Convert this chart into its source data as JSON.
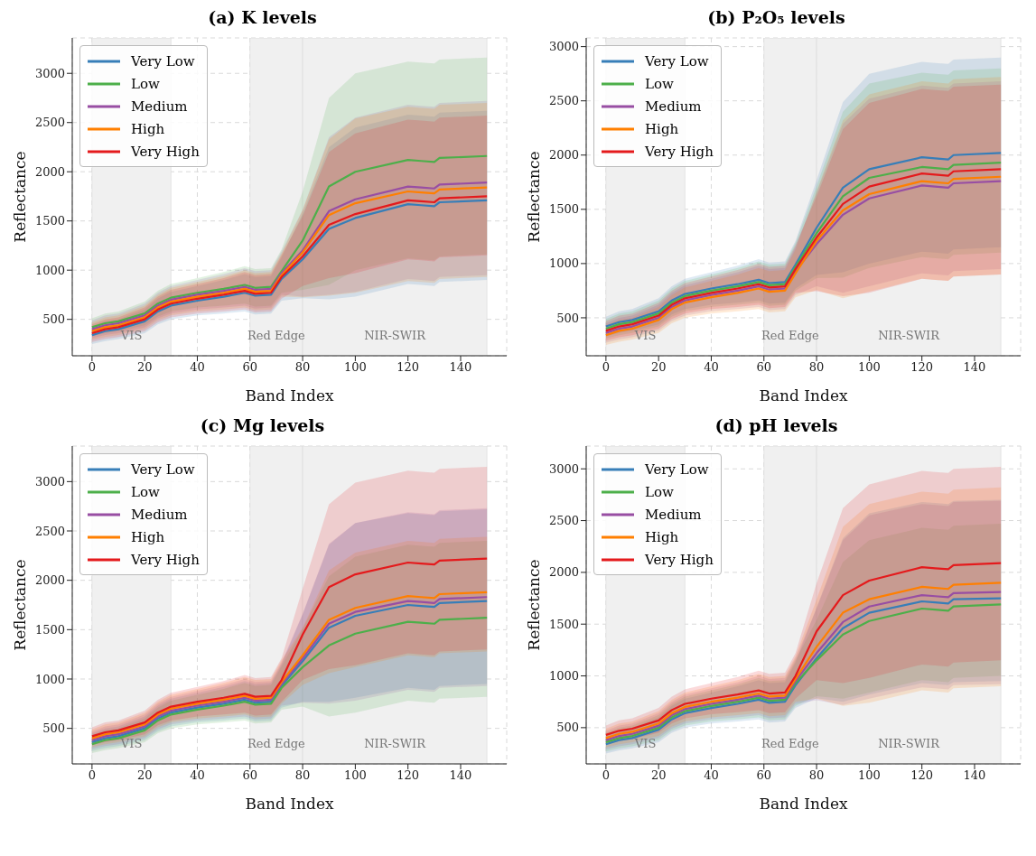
{
  "chart_data": [
    {
      "type": "line",
      "title": "(a) K levels",
      "xlabel": "Band Index",
      "ylabel": "Reflectance",
      "xlim": [
        -7.5,
        157.5
      ],
      "xticks": [
        0,
        20,
        40,
        60,
        80,
        100,
        120,
        140
      ],
      "ylim": [
        130,
        3360
      ],
      "yticks": [
        500,
        1000,
        1500,
        2000,
        2500,
        3000
      ],
      "grid": true,
      "legend": "top left",
      "marker": "none",
      "line_style": "solid",
      "x": [
        0,
        5,
        10,
        20,
        25,
        30,
        40,
        50,
        58,
        62,
        68,
        72,
        80,
        90,
        100,
        120,
        125,
        130,
        132,
        150
      ],
      "bands": [
        {
          "axis": "x",
          "from": 0,
          "to": 30,
          "label": "VIS",
          "color": "#f0f0f0"
        },
        {
          "axis": "x",
          "from": 60,
          "to": 80,
          "label": "Red Edge",
          "color": "#f0f0f0"
        },
        {
          "axis": "x",
          "from": 80,
          "to": 150,
          "label": "NIR-SWIR",
          "color": "#f0f0f0"
        }
      ],
      "series": [
        {
          "name": "Very Low",
          "color": "#377eb8",
          "values": [
            340,
            380,
            400,
            480,
            580,
            640,
            690,
            730,
            770,
            740,
            750,
            910,
            1110,
            1420,
            1530,
            1670,
            1660,
            1650,
            1690,
            1710
          ],
          "lower": [
            250,
            280,
            300,
            360,
            450,
            500,
            540,
            560,
            580,
            550,
            560,
            690,
            715,
            703,
            730,
            860,
            850,
            840,
            880,
            900
          ],
          "upper": [
            430,
            480,
            500,
            600,
            710,
            780,
            840,
            900,
            960,
            930,
            940,
            1130,
            1575,
            2250,
            2450,
            2580,
            2570,
            2560,
            2600,
            2620
          ]
        },
        {
          "name": "Low",
          "color": "#4daf4a",
          "values": [
            420,
            460,
            480,
            560,
            660,
            720,
            770,
            810,
            850,
            820,
            830,
            990,
            1300,
            1850,
            2000,
            2120,
            2110,
            2100,
            2140,
            2160
          ],
          "lower": [
            330,
            360,
            380,
            440,
            530,
            580,
            620,
            640,
            660,
            630,
            640,
            770,
            800,
            850,
            1000,
            1120,
            1110,
            1100,
            1140,
            1160
          ],
          "upper": [
            510,
            560,
            580,
            680,
            790,
            860,
            920,
            980,
            1040,
            1010,
            1020,
            1210,
            1800,
            2750,
            3000,
            3120,
            3110,
            3100,
            3140,
            3160
          ]
        },
        {
          "name": "Medium",
          "color": "#984ea3",
          "values": [
            400,
            440,
            460,
            540,
            640,
            700,
            750,
            790,
            830,
            800,
            810,
            970,
            1200,
            1600,
            1720,
            1850,
            1840,
            1830,
            1870,
            1890
          ],
          "lower": [
            310,
            340,
            360,
            420,
            510,
            560,
            600,
            620,
            640,
            610,
            620,
            750,
            730,
            750,
            780,
            910,
            900,
            890,
            930,
            950
          ],
          "upper": [
            490,
            540,
            560,
            660,
            770,
            840,
            900,
            960,
            1020,
            990,
            1000,
            1190,
            1615,
            2350,
            2550,
            2680,
            2670,
            2660,
            2700,
            2720
          ]
        },
        {
          "name": "High",
          "color": "#ff7f00",
          "values": [
            380,
            420,
            440,
            520,
            620,
            680,
            730,
            770,
            810,
            780,
            790,
            950,
            1180,
            1560,
            1680,
            1800,
            1790,
            1780,
            1820,
            1840
          ],
          "lower": [
            290,
            320,
            340,
            400,
            490,
            540,
            580,
            600,
            620,
            590,
            600,
            730,
            725,
            740,
            770,
            890,
            880,
            870,
            910,
            930
          ],
          "upper": [
            470,
            520,
            540,
            640,
            750,
            820,
            880,
            940,
            1000,
            970,
            980,
            1170,
            1610,
            2330,
            2540,
            2660,
            2650,
            2640,
            2680,
            2700
          ]
        },
        {
          "name": "Very High",
          "color": "#e41a1c",
          "values": [
            360,
            400,
            420,
            500,
            600,
            660,
            710,
            750,
            790,
            760,
            770,
            930,
            1140,
            1460,
            1570,
            1710,
            1700,
            1690,
            1730,
            1750
          ],
          "lower": [
            270,
            300,
            320,
            380,
            470,
            520,
            560,
            580,
            600,
            570,
            580,
            710,
            840,
            920,
            970,
            1110,
            1100,
            1090,
            1130,
            1150
          ],
          "upper": [
            450,
            500,
            520,
            620,
            730,
            800,
            860,
            920,
            980,
            950,
            960,
            1150,
            1550,
            2200,
            2390,
            2530,
            2520,
            2510,
            2550,
            2570
          ]
        }
      ]
    },
    {
      "type": "line",
      "title": "(b) P₂O₅ levels",
      "xlabel": "Band Index",
      "ylabel": "Reflectance",
      "xlim": [
        -7.5,
        157.5
      ],
      "xticks": [
        0,
        20,
        40,
        60,
        80,
        100,
        120,
        140
      ],
      "ylim": [
        150,
        3080
      ],
      "yticks": [
        500,
        1000,
        1500,
        2000,
        2500,
        3000
      ],
      "grid": true,
      "legend": "top left",
      "marker": "none",
      "line_style": "solid",
      "x": [
        0,
        5,
        10,
        20,
        25,
        30,
        40,
        50,
        58,
        62,
        68,
        72,
        80,
        90,
        100,
        120,
        125,
        130,
        132,
        150
      ],
      "bands": [
        {
          "axis": "x",
          "from": 0,
          "to": 30,
          "label": "VIS",
          "color": "#f0f0f0"
        },
        {
          "axis": "x",
          "from": 60,
          "to": 80,
          "label": "Red Edge",
          "color": "#f0f0f0"
        },
        {
          "axis": "x",
          "from": 80,
          "to": 150,
          "label": "NIR-SWIR",
          "color": "#f0f0f0"
        }
      ],
      "series": [
        {
          "name": "Very Low",
          "color": "#377eb8",
          "values": [
            420,
            460,
            480,
            560,
            660,
            720,
            770,
            810,
            850,
            820,
            830,
            990,
            1330,
            1700,
            1870,
            1980,
            1970,
            1960,
            2000,
            2020
          ],
          "lower": [
            330,
            360,
            380,
            440,
            530,
            580,
            620,
            640,
            660,
            630,
            640,
            770,
            895,
            920,
            1000,
            1110,
            1100,
            1090,
            1130,
            1150
          ],
          "upper": [
            510,
            560,
            580,
            680,
            790,
            860,
            920,
            980,
            1040,
            1010,
            1020,
            1210,
            1770,
            2490,
            2750,
            2860,
            2850,
            2840,
            2880,
            2900
          ]
        },
        {
          "name": "Low",
          "color": "#4daf4a",
          "values": [
            400,
            440,
            460,
            540,
            640,
            700,
            750,
            790,
            830,
            800,
            810,
            970,
            1280,
            1620,
            1790,
            1890,
            1880,
            1870,
            1910,
            1930
          ],
          "lower": [
            310,
            340,
            360,
            420,
            510,
            560,
            600,
            620,
            640,
            610,
            620,
            750,
            865,
            870,
            960,
            1060,
            1050,
            1040,
            1080,
            1100
          ],
          "upper": [
            490,
            540,
            560,
            660,
            770,
            840,
            900,
            960,
            1020,
            990,
            1000,
            1190,
            1715,
            2400,
            2660,
            2760,
            2750,
            2740,
            2780,
            2800
          ]
        },
        {
          "name": "Medium",
          "color": "#984ea3",
          "values": [
            360,
            400,
            420,
            500,
            600,
            660,
            710,
            750,
            790,
            760,
            770,
            930,
            1180,
            1450,
            1600,
            1720,
            1710,
            1700,
            1740,
            1760
          ],
          "lower": [
            270,
            300,
            320,
            380,
            470,
            520,
            560,
            580,
            600,
            570,
            580,
            710,
            790,
            730,
            790,
            910,
            900,
            890,
            930,
            950
          ],
          "upper": [
            450,
            500,
            520,
            620,
            730,
            800,
            860,
            920,
            980,
            950,
            960,
            1150,
            1655,
            2290,
            2520,
            2640,
            2630,
            2620,
            2660,
            2680
          ]
        },
        {
          "name": "High",
          "color": "#ff7f00",
          "values": [
            340,
            380,
            400,
            480,
            580,
            640,
            690,
            730,
            770,
            740,
            750,
            910,
            1210,
            1490,
            1640,
            1760,
            1750,
            1740,
            1780,
            1800
          ],
          "lower": [
            250,
            280,
            300,
            360,
            450,
            500,
            540,
            560,
            580,
            550,
            560,
            690,
            755,
            680,
            740,
            860,
            850,
            840,
            880,
            900
          ],
          "upper": [
            430,
            480,
            500,
            600,
            710,
            780,
            840,
            900,
            960,
            930,
            940,
            1130,
            1665,
            2320,
            2560,
            2680,
            2670,
            2660,
            2700,
            2720
          ]
        },
        {
          "name": "Very High",
          "color": "#e41a1c",
          "values": [
            380,
            420,
            440,
            520,
            620,
            680,
            730,
            770,
            810,
            780,
            790,
            950,
            1240,
            1550,
            1710,
            1830,
            1820,
            1810,
            1850,
            1870
          ],
          "lower": [
            290,
            320,
            340,
            400,
            490,
            540,
            580,
            600,
            620,
            590,
            600,
            730,
            745,
            700,
            730,
            860,
            850,
            840,
            880,
            900
          ],
          "upper": [
            470,
            520,
            540,
            640,
            750,
            820,
            880,
            940,
            1000,
            970,
            980,
            1170,
            1620,
            2240,
            2480,
            2610,
            2600,
            2590,
            2630,
            2650
          ]
        }
      ]
    },
    {
      "type": "line",
      "title": "(c) Mg levels",
      "xlabel": "Band Index",
      "ylabel": "Reflectance",
      "xlim": [
        -7.5,
        157.5
      ],
      "xticks": [
        0,
        20,
        40,
        60,
        80,
        100,
        120,
        140
      ],
      "ylim": [
        140,
        3360
      ],
      "yticks": [
        500,
        1000,
        1500,
        2000,
        2500,
        3000
      ],
      "grid": true,
      "legend": "top left",
      "marker": "none",
      "line_style": "solid",
      "x": [
        0,
        5,
        10,
        20,
        25,
        30,
        40,
        50,
        58,
        62,
        68,
        72,
        80,
        90,
        100,
        120,
        125,
        130,
        132,
        150
      ],
      "bands": [
        {
          "axis": "x",
          "from": 0,
          "to": 30,
          "label": "VIS",
          "color": "#f0f0f0"
        },
        {
          "axis": "x",
          "from": 60,
          "to": 80,
          "label": "Red Edge",
          "color": "#f0f0f0"
        },
        {
          "axis": "x",
          "from": 80,
          "to": 150,
          "label": "NIR-SWIR",
          "color": "#f0f0f0"
        }
      ],
      "series": [
        {
          "name": "Very Low",
          "color": "#377eb8",
          "values": [
            360,
            400,
            420,
            500,
            600,
            660,
            710,
            750,
            790,
            760,
            770,
            930,
            1180,
            1520,
            1640,
            1750,
            1740,
            1730,
            1770,
            1790
          ],
          "lower": [
            270,
            300,
            320,
            380,
            470,
            520,
            560,
            580,
            600,
            570,
            580,
            710,
            770,
            770,
            810,
            910,
            900,
            890,
            930,
            950
          ],
          "upper": [
            450,
            500,
            520,
            620,
            730,
            800,
            860,
            920,
            980,
            950,
            960,
            1150,
            1655,
            2360,
            2580,
            2680,
            2670,
            2660,
            2700,
            2720
          ]
        },
        {
          "name": "Low",
          "color": "#4daf4a",
          "values": [
            340,
            380,
            400,
            480,
            580,
            640,
            690,
            730,
            770,
            740,
            750,
            910,
            1120,
            1340,
            1460,
            1580,
            1570,
            1560,
            1600,
            1620
          ],
          "lower": [
            250,
            280,
            300,
            360,
            450,
            500,
            540,
            560,
            580,
            550,
            560,
            690,
            720,
            620,
            660,
            780,
            770,
            760,
            800,
            820
          ],
          "upper": [
            430,
            480,
            500,
            600,
            710,
            780,
            840,
            900,
            960,
            930,
            940,
            1130,
            1510,
            2040,
            2240,
            2360,
            2350,
            2340,
            2380,
            2400
          ]
        },
        {
          "name": "Medium",
          "color": "#984ea3",
          "values": [
            380,
            420,
            440,
            520,
            620,
            680,
            730,
            770,
            810,
            780,
            790,
            950,
            1210,
            1560,
            1680,
            1790,
            1780,
            1770,
            1810,
            1830
          ],
          "lower": [
            290,
            320,
            340,
            400,
            490,
            540,
            580,
            600,
            620,
            590,
            600,
            730,
            760,
            750,
            780,
            890,
            880,
            870,
            910,
            930
          ],
          "upper": [
            470,
            520,
            540,
            640,
            750,
            820,
            880,
            940,
            1000,
            970,
            980,
            1170,
            1660,
            2370,
            2580,
            2690,
            2680,
            2670,
            2710,
            2730
          ]
        },
        {
          "name": "High",
          "color": "#ff7f00",
          "values": [
            400,
            440,
            460,
            540,
            640,
            700,
            750,
            790,
            830,
            800,
            810,
            970,
            1240,
            1600,
            1720,
            1840,
            1830,
            1820,
            1860,
            1880
          ],
          "lower": [
            310,
            340,
            360,
            420,
            510,
            560,
            600,
            620,
            640,
            610,
            620,
            750,
            940,
            1060,
            1120,
            1240,
            1230,
            1220,
            1260,
            1280
          ],
          "upper": [
            490,
            540,
            560,
            660,
            770,
            840,
            900,
            960,
            1020,
            990,
            1000,
            1190,
            1520,
            2100,
            2280,
            2400,
            2390,
            2380,
            2420,
            2440
          ]
        },
        {
          "name": "Very High",
          "color": "#e41a1c",
          "values": [
            420,
            460,
            480,
            560,
            660,
            720,
            770,
            810,
            850,
            820,
            830,
            990,
            1450,
            1930,
            2060,
            2180,
            2170,
            2160,
            2200,
            2220
          ],
          "lower": [
            330,
            360,
            380,
            440,
            530,
            580,
            620,
            640,
            660,
            630,
            640,
            770,
            990,
            1100,
            1140,
            1260,
            1250,
            1240,
            1280,
            1300
          ],
          "upper": [
            510,
            560,
            580,
            680,
            790,
            860,
            920,
            980,
            1040,
            1010,
            1020,
            1210,
            1915,
            2770,
            2990,
            3110,
            3100,
            3090,
            3130,
            3150
          ]
        }
      ]
    },
    {
      "type": "line",
      "title": "(d) pH levels",
      "xlabel": "Band Index",
      "ylabel": "Reflectance",
      "xlim": [
        -7.5,
        157.5
      ],
      "xticks": [
        0,
        20,
        40,
        60,
        80,
        100,
        120,
        140
      ],
      "ylim": [
        150,
        3220
      ],
      "yticks": [
        500,
        1000,
        1500,
        2000,
        2500,
        3000
      ],
      "grid": true,
      "legend": "top left",
      "marker": "none",
      "line_style": "solid",
      "x": [
        0,
        5,
        10,
        20,
        25,
        30,
        40,
        50,
        58,
        62,
        68,
        72,
        80,
        90,
        100,
        120,
        125,
        130,
        132,
        150
      ],
      "bands": [
        {
          "axis": "x",
          "from": 0,
          "to": 30,
          "label": "VIS",
          "color": "#f0f0f0"
        },
        {
          "axis": "x",
          "from": 60,
          "to": 80,
          "label": "Red Edge",
          "color": "#f0f0f0"
        },
        {
          "axis": "x",
          "from": 80,
          "to": 150,
          "label": "NIR-SWIR",
          "color": "#f0f0f0"
        }
      ],
      "series": [
        {
          "name": "Very Low",
          "color": "#377eb8",
          "values": [
            340,
            380,
            400,
            480,
            580,
            640,
            690,
            730,
            770,
            740,
            750,
            910,
            1170,
            1460,
            1610,
            1720,
            1710,
            1700,
            1740,
            1750
          ],
          "lower": [
            250,
            280,
            300,
            360,
            450,
            500,
            540,
            560,
            580,
            550,
            560,
            690,
            785,
            750,
            820,
            930,
            920,
            910,
            940,
            950
          ],
          "upper": [
            430,
            480,
            500,
            600,
            710,
            780,
            840,
            900,
            960,
            930,
            940,
            1130,
            1660,
            2330,
            2570,
            2680,
            2670,
            2660,
            2690,
            2700
          ]
        },
        {
          "name": "Low",
          "color": "#4daf4a",
          "values": [
            360,
            400,
            420,
            500,
            600,
            660,
            710,
            750,
            790,
            760,
            770,
            930,
            1150,
            1400,
            1530,
            1650,
            1640,
            1630,
            1670,
            1690
          ],
          "lower": [
            270,
            300,
            320,
            380,
            470,
            520,
            560,
            580,
            600,
            570,
            580,
            710,
            805,
            780,
            840,
            960,
            950,
            940,
            980,
            1000
          ],
          "upper": [
            450,
            500,
            520,
            620,
            730,
            800,
            860,
            920,
            980,
            950,
            960,
            1150,
            1540,
            2100,
            2310,
            2430,
            2420,
            2410,
            2450,
            2470
          ]
        },
        {
          "name": "Medium",
          "color": "#984ea3",
          "values": [
            380,
            420,
            440,
            520,
            620,
            680,
            730,
            770,
            810,
            780,
            790,
            950,
            1220,
            1520,
            1670,
            1780,
            1770,
            1760,
            1800,
            1810
          ],
          "lower": [
            290,
            320,
            340,
            400,
            490,
            540,
            580,
            600,
            620,
            590,
            600,
            730,
            765,
            720,
            780,
            890,
            880,
            870,
            910,
            920
          ],
          "upper": [
            470,
            520,
            540,
            640,
            750,
            820,
            880,
            940,
            1000,
            970,
            980,
            1170,
            1650,
            2310,
            2550,
            2660,
            2650,
            2640,
            2680,
            2690
          ]
        },
        {
          "name": "High",
          "color": "#ff7f00",
          "values": [
            400,
            440,
            460,
            540,
            640,
            700,
            750,
            790,
            830,
            800,
            810,
            970,
            1280,
            1610,
            1740,
            1860,
            1850,
            1840,
            1880,
            1900
          ],
          "lower": [
            310,
            340,
            360,
            420,
            510,
            560,
            600,
            620,
            640,
            610,
            620,
            750,
            780,
            710,
            740,
            860,
            850,
            840,
            880,
            900
          ],
          "upper": [
            490,
            540,
            560,
            660,
            770,
            840,
            900,
            960,
            1020,
            990,
            1000,
            1190,
            1740,
            2440,
            2660,
            2780,
            2770,
            2760,
            2800,
            2820
          ]
        },
        {
          "name": "Very High",
          "color": "#e41a1c",
          "values": [
            430,
            470,
            490,
            570,
            670,
            730,
            780,
            820,
            860,
            830,
            840,
            1000,
            1430,
            1780,
            1920,
            2050,
            2040,
            2030,
            2070,
            2090
          ],
          "lower": [
            340,
            370,
            390,
            450,
            540,
            590,
            630,
            650,
            670,
            640,
            650,
            780,
            960,
            930,
            980,
            1110,
            1100,
            1090,
            1130,
            1150
          ],
          "upper": [
            520,
            570,
            590,
            690,
            800,
            870,
            930,
            990,
            1050,
            1020,
            1030,
            1220,
            1895,
            2620,
            2850,
            2980,
            2970,
            2960,
            3000,
            3020
          ]
        }
      ]
    }
  ]
}
